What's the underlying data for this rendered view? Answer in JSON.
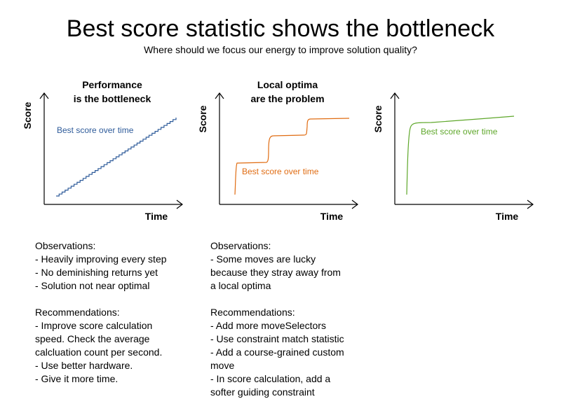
{
  "title": "Best score statistic shows the bottleneck",
  "subtitle": "Where should we focus our energy to improve solution quality?",
  "axis": {
    "x_label": "Time",
    "y_label": "Score"
  },
  "panels": [
    {
      "heading_lines": [
        "Performance",
        "is the bottleneck"
      ],
      "series_label": "Best score over time",
      "series_color": "#2e5b9a",
      "observations": [
        "Observations:",
        "- Heavily improving every step",
        "- No deminishing returns yet",
        "- Solution not near optimal"
      ],
      "recommendations": [
        "Recommendations:",
        "- Improve score calculation",
        "speed. Check the average",
        "calcluation count per second.",
        "- Use better hardware.",
        "- Give it more time."
      ]
    },
    {
      "heading_lines": [
        "Local optima",
        "are the problem"
      ],
      "series_label": "Best score over time",
      "series_color": "#e06c12",
      "observations": [
        "Observations:",
        "- Some moves are lucky",
        "because they stray away from",
        "a local optima"
      ],
      "recommendations": [
        "Recommendations:",
        "- Add more moveSelectors",
        "- Use constraint match statistic",
        "- Add a course-grained custom",
        "move",
        "- In score calculation, add a",
        "softer guiding constraint"
      ]
    },
    {
      "heading_lines": [],
      "series_label": "Best score over time",
      "series_color": "#5ea72a",
      "observations": [],
      "recommendations": []
    }
  ]
}
